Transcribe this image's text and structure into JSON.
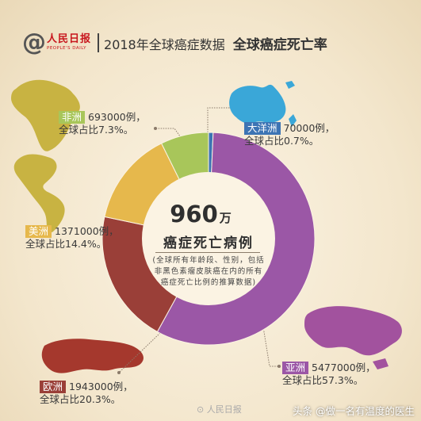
{
  "header": {
    "logo_text": "人民日报",
    "logo_subtext": "PEOPLE'S DAILY",
    "title": "2018年全球癌症数据",
    "subtitle": "全球癌症死亡率"
  },
  "center": {
    "value": "960",
    "unit": "万",
    "label": "癌症死亡病例",
    "note": "(全球所有年龄段、性别，包括非黑色素瘤皮肤癌在内的所有癌症死亡比例的推算数据)"
  },
  "labels": {
    "africa": {
      "region": "非洲",
      "cases": "693000例，",
      "share": "全球占比7.3%。"
    },
    "oceania": {
      "region": "大洋洲",
      "cases": "70000例，",
      "share": "全球占比0.7%。"
    },
    "americas": {
      "region": "美洲",
      "cases": "1371000例，",
      "share": "全球占比14.4%。"
    },
    "europe": {
      "region": "欧洲",
      "cases": "1943000例，",
      "share": "全球占比20.3%。"
    },
    "asia": {
      "region": "亚洲",
      "cases": "5477000例，",
      "share": "全球占比57.3%。"
    }
  },
  "chart_data": {
    "type": "pie",
    "categories": [
      "大洋洲",
      "亚洲",
      "欧洲",
      "美洲",
      "非洲"
    ],
    "values": [
      0.7,
      57.3,
      20.3,
      14.4,
      7.3
    ],
    "cases": [
      70000,
      5477000,
      1943000,
      1371000,
      693000
    ],
    "colors": [
      "#3d74b4",
      "#9b57a6",
      "#9a3f38",
      "#e6b84c",
      "#a8c65a"
    ],
    "total": "960万"
  },
  "watermark": "人民日报",
  "credit": "头条 @做一名有温度的医生",
  "colors": {
    "map_yellow_green": "#c9b244",
    "map_blue": "#3aa7d8",
    "map_purple": "#a2529e",
    "map_red": "#a5382d"
  }
}
